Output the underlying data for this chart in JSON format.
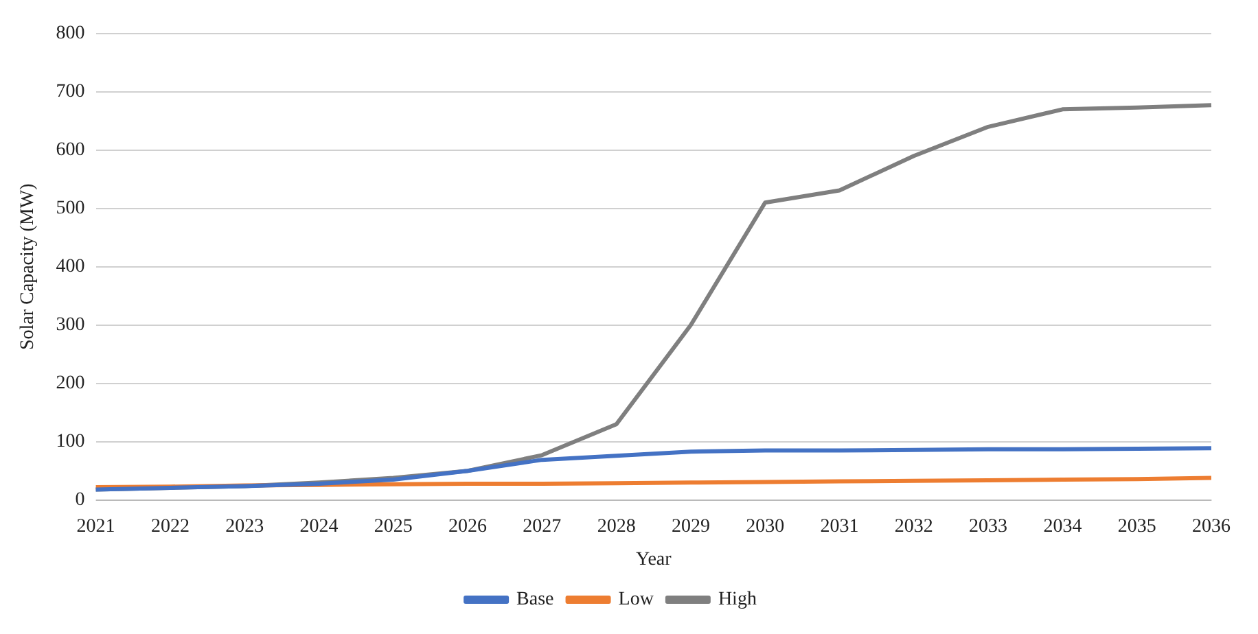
{
  "chart_data": {
    "type": "line",
    "xlabel": "Year",
    "ylabel": "Solar Capacity (MW)",
    "categories": [
      "2021",
      "2022",
      "2023",
      "2024",
      "2025",
      "2026",
      "2027",
      "2028",
      "2029",
      "2030",
      "2031",
      "2032",
      "2033",
      "2034",
      "2035",
      "2036"
    ],
    "series": [
      {
        "name": "Base",
        "color": "#4472c4",
        "values": [
          18,
          21,
          24,
          28,
          35,
          50,
          69,
          76,
          83,
          85,
          85,
          86,
          87,
          87,
          88,
          89
        ]
      },
      {
        "name": "Low",
        "color": "#ed7d31",
        "values": [
          22,
          23,
          25,
          26,
          27,
          28,
          28,
          29,
          30,
          31,
          32,
          33,
          34,
          35,
          36,
          38
        ]
      },
      {
        "name": "High",
        "color": "#7f7f7f",
        "values": [
          18,
          21,
          24,
          30,
          38,
          50,
          77,
          130,
          300,
          510,
          531,
          590,
          640,
          670,
          673,
          677
        ]
      }
    ],
    "ylim": [
      0,
      800
    ],
    "yticks": [
      0,
      100,
      200,
      300,
      400,
      500,
      600,
      700,
      800
    ],
    "grid": "y",
    "legend": "bottom",
    "marker": "none"
  }
}
